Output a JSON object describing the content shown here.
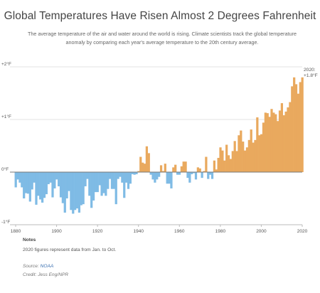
{
  "title": "Global Temperatures Have Risen Almost 2 Degrees Fahrenheit",
  "subtitle": "The average temperature of the air and water around the world is rising. Climate scientists track the global temperature anomaly by comparing each year's average temperature to the 20th century average.",
  "chart_data": {
    "type": "bar",
    "x_start": 1880,
    "x_end": 2020,
    "xticks": [
      "1880",
      "1900",
      "1920",
      "1940",
      "1960",
      "1980",
      "2000",
      "2020"
    ],
    "yticks": [
      "+2°F",
      "+1°F",
      "0°F",
      "-1°F"
    ],
    "ylim": [
      -1,
      2
    ],
    "grid": true,
    "colors": {
      "positive": "#e9a95e",
      "negative": "#7fbbe5"
    },
    "annotation": {
      "line1": "2020:",
      "line2": "+1.8°F"
    },
    "values": [
      -0.29,
      -0.14,
      -0.2,
      -0.29,
      -0.5,
      -0.4,
      -0.41,
      -0.56,
      -0.33,
      -0.2,
      -0.62,
      -0.45,
      -0.52,
      -0.58,
      -0.49,
      -0.42,
      -0.23,
      -0.2,
      -0.48,
      -0.31,
      -0.14,
      -0.27,
      -0.48,
      -0.59,
      -0.77,
      -0.5,
      -0.36,
      -0.72,
      -0.79,
      -0.72,
      -0.69,
      -0.77,
      -0.63,
      -0.61,
      -0.27,
      -0.13,
      -0.45,
      -0.68,
      -0.54,
      -0.38,
      -0.38,
      -0.25,
      -0.45,
      -0.4,
      -0.45,
      -0.32,
      -0.13,
      -0.32,
      -0.32,
      -0.61,
      -0.13,
      -0.09,
      -0.2,
      -0.49,
      -0.2,
      -0.32,
      -0.22,
      -0.04,
      -0.05,
      -0.04,
      0.02,
      0.29,
      0.18,
      0.16,
      0.49,
      0.36,
      -0.05,
      -0.14,
      -0.2,
      -0.14,
      -0.09,
      0.13,
      0.02,
      0.16,
      -0.22,
      -0.22,
      -0.31,
      0.09,
      0.14,
      -0.05,
      -0.05,
      0.11,
      0.2,
      0.2,
      -0.11,
      -0.2,
      -0.04,
      -0.02,
      -0.14,
      0.09,
      0.07,
      -0.11,
      0.02,
      0.29,
      -0.13,
      -0.05,
      -0.13,
      0.22,
      0.05,
      0.27,
      0.47,
      0.41,
      0.22,
      0.52,
      0.32,
      0.25,
      0.4,
      0.59,
      0.4,
      0.7,
      0.79,
      0.58,
      0.41,
      0.47,
      0.61,
      0.81,
      0.56,
      0.61,
      1.04,
      0.7,
      0.72,
      0.94,
      1.13,
      1.12,
      1.05,
      1.2,
      1.13,
      1.1,
      0.97,
      1.17,
      1.31,
      1.08,
      1.15,
      1.23,
      1.33,
      1.63,
      1.8,
      1.67,
      1.49,
      1.71,
      1.8
    ]
  },
  "notes": {
    "heading": "Notes",
    "text": "2020 figures represent data from Jan. to Oct."
  },
  "source": {
    "label": "Source:",
    "link_text": "NOAA"
  },
  "credit": "Credit: Jess Eng/NPR"
}
